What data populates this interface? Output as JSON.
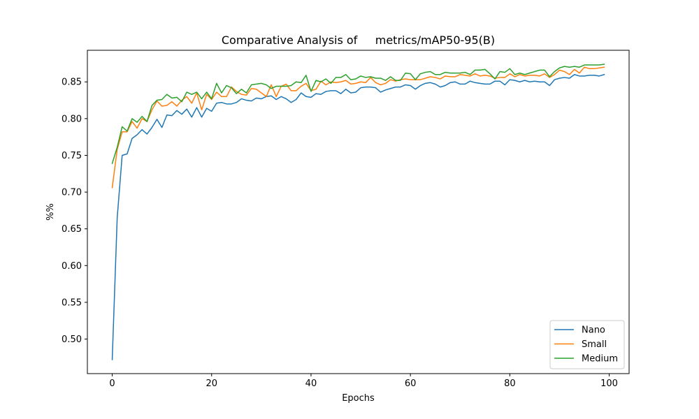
{
  "chart_data": {
    "type": "line",
    "title": "Comparative Analysis of     metrics/mAP50-95(B)",
    "xlabel": "Epochs",
    "ylabel": "%%",
    "xlim": [
      -5,
      104
    ],
    "ylim": [
      0.453,
      0.893
    ],
    "xticks": [
      0,
      20,
      40,
      60,
      80,
      100
    ],
    "yticks": [
      0.5,
      0.55,
      0.6,
      0.65,
      0.7,
      0.75,
      0.8,
      0.85
    ],
    "ytick_labels": [
      "0.50",
      "0.55",
      "0.60",
      "0.65",
      "0.70",
      "0.75",
      "0.80",
      "0.85"
    ],
    "grid": false,
    "legend_position": "lower right",
    "series": [
      {
        "name": "Nano",
        "color": "#1f77b4",
        "values": [
          0.472,
          0.665,
          0.75,
          0.752,
          0.773,
          0.778,
          0.785,
          0.779,
          0.788,
          0.799,
          0.788,
          0.805,
          0.804,
          0.811,
          0.806,
          0.813,
          0.802,
          0.815,
          0.802,
          0.814,
          0.81,
          0.821,
          0.822,
          0.82,
          0.82,
          0.822,
          0.827,
          0.825,
          0.824,
          0.828,
          0.827,
          0.83,
          0.831,
          0.826,
          0.83,
          0.827,
          0.822,
          0.826,
          0.835,
          0.83,
          0.829,
          0.834,
          0.833,
          0.837,
          0.838,
          0.838,
          0.834,
          0.84,
          0.835,
          0.836,
          0.842,
          0.843,
          0.843,
          0.842,
          0.836,
          0.839,
          0.841,
          0.843,
          0.843,
          0.846,
          0.845,
          0.84,
          0.845,
          0.848,
          0.849,
          0.847,
          0.843,
          0.845,
          0.849,
          0.85,
          0.847,
          0.847,
          0.851,
          0.849,
          0.848,
          0.847,
          0.847,
          0.851,
          0.851,
          0.846,
          0.853,
          0.852,
          0.85,
          0.852,
          0.85,
          0.851,
          0.85,
          0.85,
          0.845,
          0.853,
          0.855,
          0.856,
          0.855,
          0.86,
          0.858,
          0.858,
          0.859,
          0.859,
          0.858,
          0.86
        ]
      },
      {
        "name": "Small",
        "color": "#ff7f0e",
        "values": [
          0.706,
          0.758,
          0.782,
          0.782,
          0.796,
          0.787,
          0.8,
          0.796,
          0.812,
          0.824,
          0.817,
          0.818,
          0.823,
          0.817,
          0.825,
          0.83,
          0.821,
          0.835,
          0.812,
          0.833,
          0.826,
          0.836,
          0.83,
          0.83,
          0.843,
          0.837,
          0.833,
          0.832,
          0.841,
          0.84,
          0.835,
          0.83,
          0.846,
          0.83,
          0.844,
          0.847,
          0.838,
          0.838,
          0.844,
          0.848,
          0.838,
          0.84,
          0.851,
          0.846,
          0.85,
          0.849,
          0.85,
          0.852,
          0.847,
          0.848,
          0.85,
          0.849,
          0.856,
          0.849,
          0.846,
          0.848,
          0.853,
          0.851,
          0.853,
          0.854,
          0.853,
          0.853,
          0.853,
          0.855,
          0.857,
          0.856,
          0.854,
          0.858,
          0.857,
          0.857,
          0.86,
          0.859,
          0.858,
          0.861,
          0.858,
          0.859,
          0.858,
          0.855,
          0.856,
          0.856,
          0.861,
          0.857,
          0.86,
          0.858,
          0.859,
          0.859,
          0.858,
          0.861,
          0.856,
          0.86,
          0.866,
          0.864,
          0.86,
          0.867,
          0.862,
          0.87,
          0.868,
          0.868,
          0.869,
          0.87
        ]
      },
      {
        "name": "Medium",
        "color": "#2ca02c",
        "values": [
          0.739,
          0.761,
          0.789,
          0.783,
          0.8,
          0.795,
          0.803,
          0.796,
          0.818,
          0.825,
          0.826,
          0.833,
          0.828,
          0.829,
          0.823,
          0.836,
          0.833,
          0.836,
          0.827,
          0.836,
          0.827,
          0.848,
          0.835,
          0.845,
          0.842,
          0.834,
          0.84,
          0.835,
          0.846,
          0.847,
          0.848,
          0.846,
          0.841,
          0.844,
          0.844,
          0.844,
          0.845,
          0.85,
          0.849,
          0.859,
          0.837,
          0.852,
          0.85,
          0.854,
          0.848,
          0.856,
          0.856,
          0.86,
          0.853,
          0.854,
          0.858,
          0.856,
          0.857,
          0.855,
          0.855,
          0.852,
          0.857,
          0.852,
          0.852,
          0.862,
          0.861,
          0.853,
          0.861,
          0.863,
          0.864,
          0.86,
          0.86,
          0.863,
          0.862,
          0.862,
          0.862,
          0.863,
          0.86,
          0.866,
          0.866,
          0.867,
          0.861,
          0.854,
          0.864,
          0.863,
          0.868,
          0.86,
          0.862,
          0.86,
          0.862,
          0.864,
          0.866,
          0.866,
          0.857,
          0.864,
          0.869,
          0.871,
          0.87,
          0.871,
          0.87,
          0.873,
          0.873,
          0.873,
          0.873,
          0.874
        ]
      }
    ]
  }
}
